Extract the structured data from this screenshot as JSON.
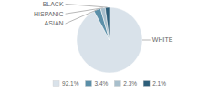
{
  "chart_data": {
    "type": "pie",
    "categories": [
      "WHITE",
      "ASIAN",
      "HISPANIC",
      "BLACK"
    ],
    "values": [
      92.1,
      3.4,
      2.3,
      2.1
    ],
    "value_labels": [
      "92.1%",
      "3.4%",
      "2.3%",
      "2.1%"
    ],
    "colors": [
      "#d9e2ea",
      "#5b8fa8",
      "#a8bfcc",
      "#2e5f7a"
    ],
    "legend": "bottom"
  }
}
